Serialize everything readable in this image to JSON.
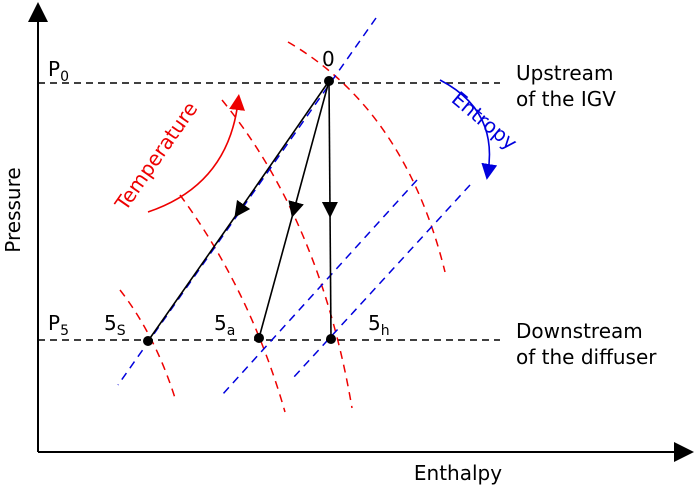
{
  "axes": {
    "y_label": "Pressure",
    "x_label": "Enthalpy"
  },
  "annotations": {
    "upstream": [
      "Upstream",
      "of the IGV"
    ],
    "downstream": [
      "Downstream",
      "of the diffuser"
    ],
    "temperature": "Temperature",
    "entropy": "Entropy"
  },
  "points": {
    "origin": "0",
    "p0": {
      "main": "P",
      "sub": "0"
    },
    "p5": {
      "main": "P",
      "sub": "5"
    },
    "s": {
      "main": "5",
      "sub": "S"
    },
    "a": {
      "main": "5",
      "sub": "a"
    },
    "h": {
      "main": "5",
      "sub": "h"
    }
  }
}
